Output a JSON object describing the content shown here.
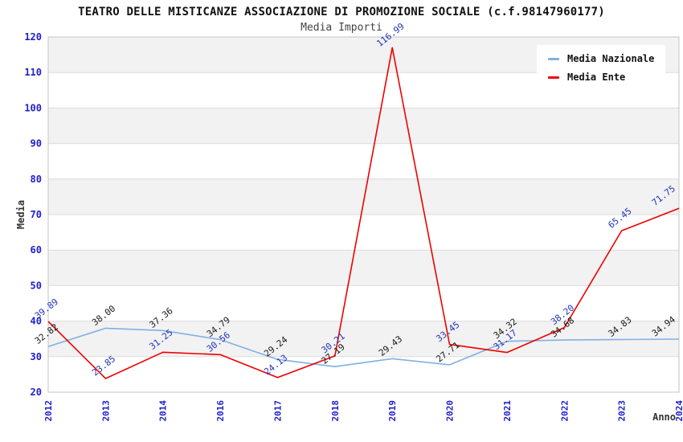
{
  "title": "TEATRO DELLE MISTICANZE ASSOCIAZIONE DI PROMOZIONE SOCIALE (c.f.98147960177)",
  "subtitle": "Media Importi",
  "chart_data": {
    "type": "line",
    "x": [
      "2012",
      "2013",
      "2014",
      "2016",
      "2017",
      "2018",
      "2019",
      "2020",
      "2021",
      "2022",
      "2023",
      "2024"
    ],
    "series": [
      {
        "name": "Media Nazionale",
        "color": "#7fb1e3",
        "label_color": "#1a1a1a",
        "values": [
          32.82,
          38.0,
          37.36,
          34.79,
          29.24,
          27.19,
          29.43,
          27.71,
          34.32,
          34.68,
          34.83,
          34.94
        ]
      },
      {
        "name": "Media Ente",
        "color": "#ee0000",
        "label_color": "#2233bb",
        "values": [
          39.89,
          23.85,
          31.25,
          30.56,
          24.13,
          30.21,
          116.99,
          33.45,
          31.17,
          38.2,
          65.45,
          71.75
        ]
      }
    ],
    "xlabel": "Anno",
    "ylabel": "Media",
    "ylim": [
      20,
      120
    ],
    "ytick_step": 10,
    "grid": true,
    "legend_position": "top-right",
    "value_label_decimals": 2,
    "colors": {
      "tick_label": "#2020cc",
      "band_fill": "#f2f2f2",
      "grid_line": "#dcdcdc",
      "plot_border": "#c6c6c6",
      "axis_title": "#333333"
    }
  }
}
